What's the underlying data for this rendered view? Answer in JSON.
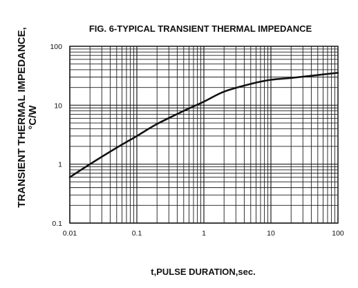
{
  "chart_data": {
    "type": "line",
    "title": "FIG. 6-TYPICAL TRANSIENT THERMAL IMPEDANCE",
    "xlabel": "t,PULSE DURATION,sec.",
    "ylabel": [
      "TRANSIENT THERMAL IMPEDANCE,",
      "°C/W"
    ],
    "x_scale": "log",
    "y_scale": "log",
    "xlim": [
      0.01,
      100
    ],
    "ylim": [
      0.1,
      100
    ],
    "x_ticks": [
      "0.01",
      "0.1",
      "1",
      "10",
      "100"
    ],
    "y_ticks": [
      "0.1",
      "1",
      "10",
      "100"
    ],
    "grid": true,
    "series": [
      {
        "x": [
          0.01,
          0.02,
          0.05,
          0.1,
          0.2,
          0.5,
          1,
          2,
          5,
          10,
          20,
          50,
          100
        ],
        "y": [
          0.6,
          1.0,
          1.9,
          3.0,
          4.8,
          8.0,
          11.5,
          17.0,
          23.0,
          27.0,
          29.0,
          32.5,
          35.5
        ]
      }
    ],
    "colors": {
      "grid": "#1a1a1a",
      "line": "#111111"
    }
  }
}
